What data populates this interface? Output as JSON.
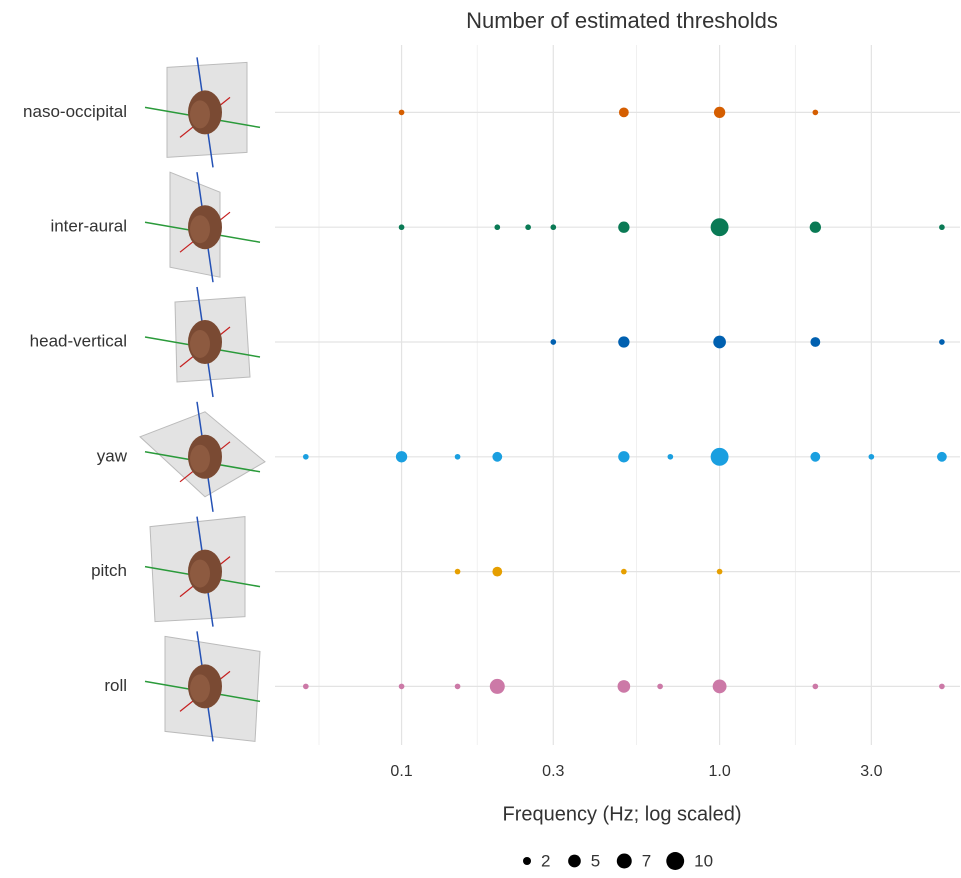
{
  "chart_data": {
    "type": "dot",
    "title": "Number of estimated thresholds",
    "x_label": "Frequency (Hz; log scaled)",
    "log_x": true,
    "grid": true,
    "xlim": [
      0.04,
      5.7
    ],
    "xticks": [
      {
        "value": 0.1,
        "label": "0.1"
      },
      {
        "value": 0.3,
        "label": "0.3"
      },
      {
        "value": 1.0,
        "label": "1.0"
      },
      {
        "value": 3.0,
        "label": "3.0"
      }
    ],
    "xminor": [
      0.055,
      0.173,
      0.548,
      1.732
    ],
    "size_legend": [
      2,
      5,
      7,
      10
    ],
    "series": [
      {
        "name": "naso-occipital",
        "color": "#d55e00",
        "x": [
          0.1,
          0.5,
          1.0,
          2.0
        ],
        "sizes": [
          1,
          3,
          4,
          1
        ]
      },
      {
        "name": "inter-aural",
        "color": "#0a7a55",
        "x": [
          0.1,
          0.2,
          0.25,
          0.3,
          0.5,
          1.0,
          2.0,
          5.0
        ],
        "sizes": [
          1,
          1,
          1,
          1,
          4,
          10,
          4,
          1
        ]
      },
      {
        "name": "head-vertical",
        "color": "#0060b0",
        "x": [
          0.3,
          0.5,
          1.0,
          2.0,
          5.0
        ],
        "sizes": [
          1,
          4,
          5,
          3,
          1
        ]
      },
      {
        "name": "yaw",
        "color": "#1a9fe0",
        "x": [
          0.05,
          0.1,
          0.15,
          0.2,
          0.5,
          0.7,
          1.0,
          2.0,
          3.0,
          5.0
        ],
        "sizes": [
          1,
          4,
          1,
          3,
          4,
          1,
          10,
          3,
          1,
          3
        ]
      },
      {
        "name": "pitch",
        "color": "#e69f00",
        "x": [
          0.15,
          0.2,
          0.5,
          1.0
        ],
        "sizes": [
          1,
          3,
          1,
          1
        ]
      },
      {
        "name": "roll",
        "color": "#cc79a7",
        "x": [
          0.05,
          0.1,
          0.15,
          0.2,
          0.5,
          0.65,
          1.0,
          2.0,
          5.0
        ],
        "sizes": [
          1,
          1,
          1,
          7,
          5,
          1,
          6,
          1,
          1
        ]
      }
    ]
  }
}
